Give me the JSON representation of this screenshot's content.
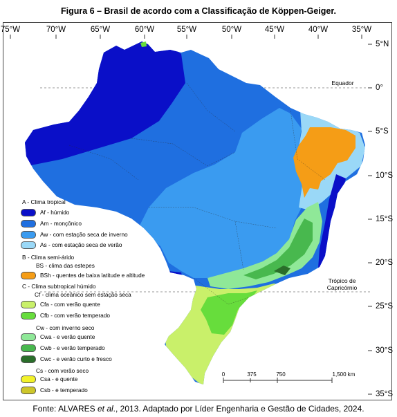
{
  "title": "Figura 6 – Brasil de acordo com a Classificação de Köppen-Geiger.",
  "longitudes": [
    "75°W",
    "70°W",
    "65°W",
    "60°W",
    "55°W",
    "50°W",
    "45°W",
    "40°W",
    "35°W"
  ],
  "latitudes": [
    "5°N",
    "0°",
    "5°S",
    "10°S",
    "15°S",
    "20°S",
    "25°S",
    "30°S",
    "35°S"
  ],
  "map_labels": {
    "equator": "Equador",
    "tropic_line1": "Trópico de",
    "tropic_line2": "Capricórnio"
  },
  "scale": {
    "ticks": [
      "0",
      "375",
      "750",
      "1,500 km"
    ]
  },
  "legend": {
    "group_a": "A - Clima tropical",
    "af": "Af - húmido",
    "am": "Am - monçônico",
    "aw": "Aw - com estação seca de inverno",
    "as": "As - com estação seca de verão",
    "group_b": "B - Clima semi-árido",
    "bs": "BS - clima das estepes",
    "bsh": "BSh - quentes de baixa latitude e altitude",
    "group_c": "C - Clima subtropical húmido",
    "cf": "Cf - clima oceânico sem estação seca",
    "cfa": "Cfa - com verão quente",
    "cfb": "Cfb - com verão temperado",
    "cw": "Cw - com inverno seco",
    "cwa": "Cwa - e verão quente",
    "cwb": "Cwb - e verão temperado",
    "cwc": "Cwc - e verão curto e fresco",
    "cs": "Cs - com verão seco",
    "csa": "Csa - e quente",
    "csb": "Csb - e temperado"
  },
  "colors": {
    "af": "#0a0fc8",
    "am": "#1f6fe0",
    "aw": "#3a9bf0",
    "as": "#9ad8f7",
    "bsh": "#f59d16",
    "cfa": "#c9f06a",
    "cfb": "#67dd3c",
    "cwa": "#8fe898",
    "cwb": "#48b84e",
    "cwc": "#2a6e2a",
    "csa": "#f2f22a",
    "csb": "#cdc62a"
  },
  "footer": {
    "prefix": "Fonte: ALVARES ",
    "italic": "et al",
    "suffix": "., 2013. Adaptado por Líder Engenharia e Gestão de Cidades, 2024."
  }
}
